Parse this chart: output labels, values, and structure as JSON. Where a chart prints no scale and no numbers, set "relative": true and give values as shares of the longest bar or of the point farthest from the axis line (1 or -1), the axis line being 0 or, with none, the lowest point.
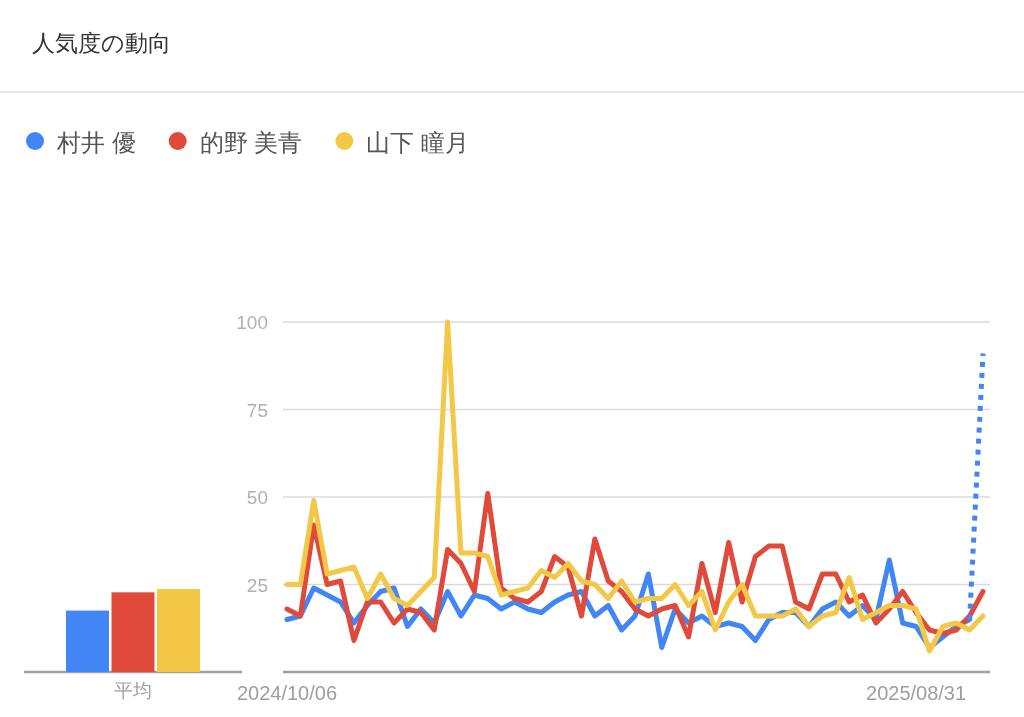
{
  "chart_data": [
    {
      "type": "line",
      "title": "人気度の動向",
      "legend": "top left",
      "grid": "y",
      "line_style": "solid",
      "marker": "none",
      "categories": [
        "2024/10/06",
        null,
        null,
        null,
        null,
        null,
        null,
        null,
        null,
        null,
        null,
        null,
        null,
        null,
        null,
        null,
        null,
        null,
        null,
        null,
        null,
        null,
        null,
        null,
        null,
        null,
        null,
        null,
        null,
        null,
        null,
        null,
        null,
        null,
        null,
        null,
        null,
        null,
        null,
        null,
        null,
        null,
        null,
        null,
        null,
        null,
        null,
        "2025/08/31",
        null,
        null,
        null,
        null,
        null
      ],
      "ylim": [
        0,
        100
      ],
      "yticks": [
        {
          "value": 0,
          "label": null
        },
        25,
        50,
        75,
        100
      ],
      "series": [
        {
          "name": "村井 優",
          "color": "#4285f4",
          "values": [
            15,
            16,
            24,
            22,
            20,
            14,
            19,
            23,
            24,
            13,
            18,
            14,
            23,
            16,
            22,
            21,
            18,
            20,
            18,
            17,
            20,
            22,
            23,
            16,
            19,
            12,
            16,
            28,
            7,
            18,
            14,
            16,
            13,
            14,
            13,
            9,
            15,
            17,
            17,
            13,
            18,
            20,
            16,
            19,
            15,
            32,
            14,
            13,
            7,
            10,
            13,
            15,
            null
          ]
        },
        {
          "name": "的野 美青",
          "color": "#e04a3a",
          "values": [
            18,
            16,
            42,
            25,
            26,
            9,
            20,
            20,
            14,
            18,
            17,
            12,
            35,
            31,
            23,
            51,
            24,
            21,
            20,
            23,
            33,
            30,
            16,
            38,
            26,
            23,
            18,
            16,
            18,
            19,
            10,
            31,
            17,
            37,
            20,
            33,
            36,
            36,
            20,
            18,
            28,
            28,
            20,
            22,
            14,
            18,
            23,
            17,
            12,
            11,
            12,
            16,
            23
          ]
        },
        {
          "name": "山下 瞳月",
          "color": "#f4c847",
          "values": [
            25,
            25,
            49,
            28,
            29,
            30,
            21,
            28,
            21,
            19,
            23,
            27,
            100,
            34,
            34,
            33,
            22,
            23,
            24,
            29,
            27,
            31,
            26,
            25,
            21,
            26,
            20,
            21,
            21,
            25,
            19,
            23,
            12,
            20,
            25,
            16,
            16,
            16,
            18,
            13,
            16,
            17,
            27,
            15,
            17,
            19,
            19,
            18,
            6,
            13,
            14,
            12,
            16
          ]
        },
        {
          "color": "#4285f4",
          "line_style": "dotted",
          "values": [
            null,
            null,
            null,
            null,
            null,
            null,
            null,
            null,
            null,
            null,
            null,
            null,
            null,
            null,
            null,
            null,
            null,
            null,
            null,
            null,
            null,
            null,
            null,
            null,
            null,
            null,
            null,
            null,
            null,
            null,
            null,
            null,
            null,
            null,
            null,
            null,
            null,
            null,
            null,
            null,
            null,
            null,
            null,
            null,
            null,
            null,
            null,
            null,
            null,
            null,
            null,
            15,
            91
          ]
        }
      ]
    },
    {
      "type": "bar",
      "relative": true,
      "categories": [
        "平均"
      ],
      "series": [
        {
          "color": "#4285f4",
          "values": [
            0.74
          ]
        },
        {
          "color": "#e04a3a",
          "values": [
            0.96
          ]
        },
        {
          "color": "#f4c847",
          "values": [
            1
          ]
        }
      ]
    }
  ]
}
